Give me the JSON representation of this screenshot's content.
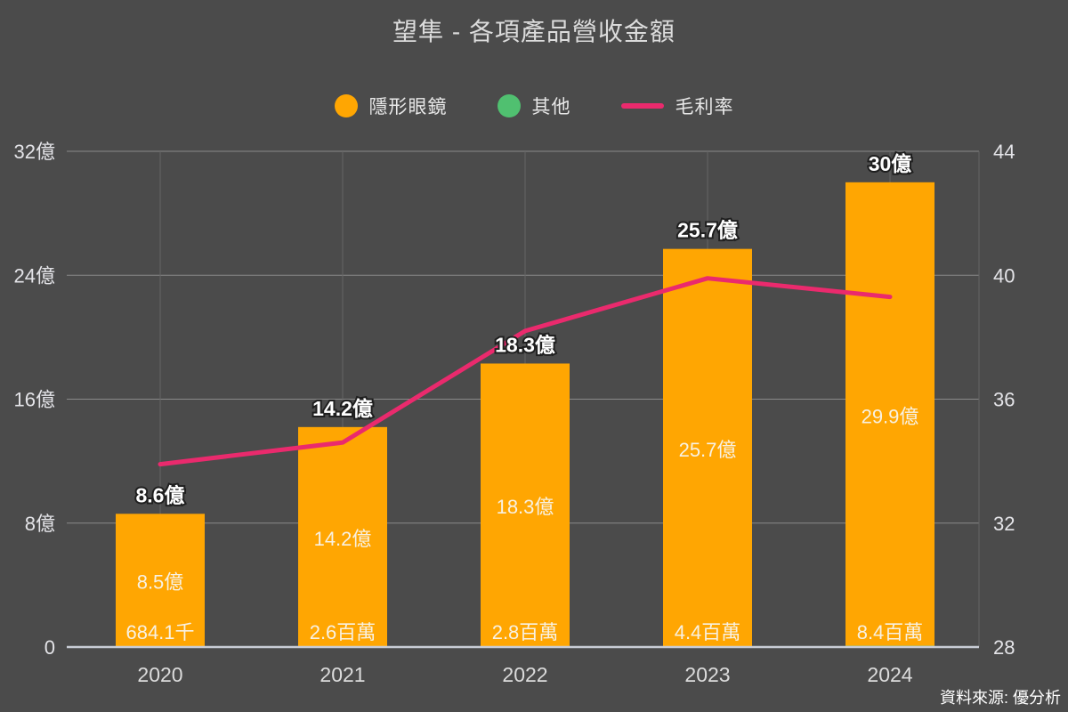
{
  "title": "望隼 - 各項產品營收金額",
  "source": "資料來源: 優分析",
  "colors": {
    "background": "#4b4b4b",
    "bar_lens": "#FFA602",
    "bar_other": "#50C070",
    "margin_line": "#EA2A6D",
    "grid_h": "#8a8a8a",
    "grid_v": "#646464",
    "axis_line": "#c9cdd6",
    "tick_text": "#e4e4e8",
    "year_text": "#dcdcdc",
    "label_in_bar": "#f8f1e2",
    "label_total_fill": "#ffffff",
    "label_total_stroke": "#1f1f1f"
  },
  "legend": {
    "items": [
      {
        "label": "隱形眼鏡",
        "swatch": "circle",
        "color": "#FFA602"
      },
      {
        "label": "其他",
        "swatch": "circle",
        "color": "#50C070"
      },
      {
        "label": "毛利率",
        "swatch": "line",
        "color": "#EA2A6D"
      }
    ]
  },
  "chart_data": {
    "type": "bar",
    "subtype": "stacked-bars-with-line-overlay",
    "title": "望隼 - 各項產品營收金額",
    "categories": [
      "2020",
      "2021",
      "2022",
      "2023",
      "2024"
    ],
    "series": [
      {
        "name": "隱形眼鏡",
        "render": "bar",
        "axis": "left",
        "color": "#FFA602",
        "unit": "億",
        "values": [
          8.5,
          14.2,
          18.3,
          25.7,
          29.9
        ],
        "labels": [
          "8.5億",
          "14.2億",
          "18.3億",
          "25.7億",
          "29.9億"
        ]
      },
      {
        "name": "其他",
        "render": "bar",
        "axis": "left",
        "color": "#50C070",
        "unit": "億",
        "values": [
          0.0068,
          0.026,
          0.028,
          0.044,
          0.084
        ],
        "labels": [
          "684.1千",
          "2.6百萬",
          "2.8百萬",
          "4.4百萬",
          "8.4百萬"
        ]
      },
      {
        "name": "毛利率",
        "render": "line",
        "axis": "right",
        "color": "#EA2A6D",
        "unit": "%",
        "values": [
          33.9,
          34.6,
          38.2,
          39.9,
          39.3
        ]
      }
    ],
    "totals": {
      "values": [
        8.6,
        14.2,
        18.3,
        25.7,
        30
      ],
      "labels": [
        "8.6億",
        "14.2億",
        "18.3億",
        "25.7億",
        "30億"
      ]
    },
    "left_axis": {
      "range": [
        0,
        32
      ],
      "ticks": [
        0,
        8,
        16,
        24,
        32
      ],
      "tick_labels": [
        "0",
        "8億",
        "16億",
        "24億",
        "32億"
      ]
    },
    "right_axis": {
      "range": [
        28,
        44
      ],
      "ticks": [
        28,
        32,
        36,
        40,
        44
      ],
      "tick_labels": [
        "28",
        "32",
        "36",
        "40",
        "44"
      ]
    },
    "grid": true,
    "legend_position": "top"
  }
}
